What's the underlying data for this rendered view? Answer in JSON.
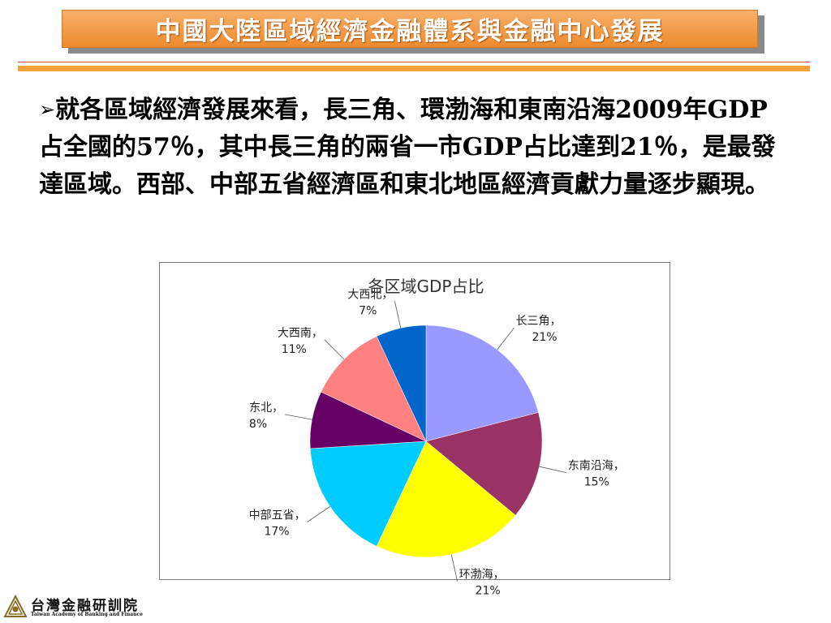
{
  "slide": {
    "title": "中國大陸區域經濟金融體系與金融中心發展",
    "bullet_icon": "arrow-bullet-icon",
    "paragraph": "就各區域經濟發展來看，長三角、環渤海和東南沿海2009年GDP 占全國的57％，其中長三角的兩省一市GDP占比達到21％，是最發達區域。西部、中部五省經濟區和東北地區經濟貢獻力量逐步顯現。"
  },
  "chart_data": {
    "type": "pie",
    "title": "各区域GDP占比",
    "slices": [
      {
        "name": "长三角",
        "value": 21,
        "label": "21%",
        "color": "#9999ff"
      },
      {
        "name": "东南沿海",
        "value": 15,
        "label": "15%",
        "color": "#993366"
      },
      {
        "name": "环渤海",
        "value": 21,
        "label": "21%",
        "color": "#ffff00"
      },
      {
        "name": "中部五省",
        "value": 17,
        "label": "17%",
        "color": "#00ccff"
      },
      {
        "name": "东北",
        "value": 8,
        "label": "8%",
        "color": "#660066"
      },
      {
        "name": "大西南",
        "value": 11,
        "label": "11%",
        "color": "#ff8080"
      },
      {
        "name": "大西北",
        "value": 7,
        "label": "7%",
        "color": "#0066cc"
      }
    ],
    "start_angle": "top",
    "direction": "clockwise",
    "legend": "none"
  },
  "footer": {
    "org_name": "台灣金融研訓院",
    "org_name_en": "Taiwan Academy of Banking and Finance",
    "logo_icon": "academy-emblem-icon"
  },
  "colors": {
    "title_banner": "#ee8a2c",
    "accent_rule": "#f4a33a",
    "thin_rule": "#e24a36"
  }
}
